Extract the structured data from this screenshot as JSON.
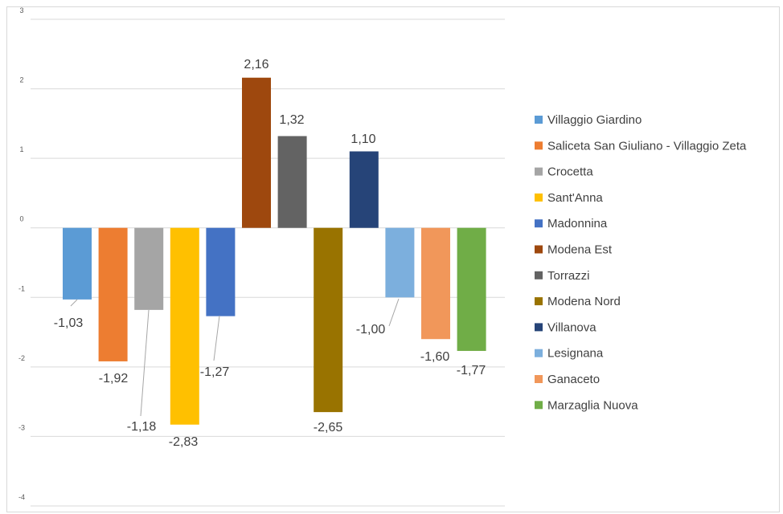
{
  "chart_data": {
    "type": "bar",
    "ylim": [
      -4,
      3
    ],
    "yticks": [
      "3",
      "2",
      "1",
      "0",
      "-1",
      "-2",
      "-3",
      "-4"
    ],
    "grid": true,
    "legend_position": "right",
    "series": [
      {
        "name": "Villaggio Giardino",
        "value": -1.03,
        "label": "-1,03",
        "color": "#5B9BD5"
      },
      {
        "name": "Saliceta San Giuliano - Villaggio Zeta",
        "value": -1.92,
        "label": "-1,92",
        "color": "#ED7D31"
      },
      {
        "name": "Crocetta",
        "value": -1.18,
        "label": "-1,18",
        "color": "#A5A5A5"
      },
      {
        "name": "Sant'Anna",
        "value": -2.83,
        "label": "-2,83",
        "color": "#FFC000"
      },
      {
        "name": "Madonnina",
        "value": -1.27,
        "label": "-1,27",
        "color": "#4472C4"
      },
      {
        "name": "Modena Est",
        "value": 2.16,
        "label": "2,16",
        "color": "#9E480E"
      },
      {
        "name": "Torrazzi",
        "value": 1.32,
        "label": "1,32",
        "color": "#636363"
      },
      {
        "name": "Modena Nord",
        "value": -2.65,
        "label": "-2,65",
        "color": "#997300"
      },
      {
        "name": "Villanova",
        "value": 1.1,
        "label": "1,10",
        "color": "#264478"
      },
      {
        "name": "Lesignana",
        "value": -1.0,
        "label": "-1,00",
        "color": "#7CAFDD"
      },
      {
        "name": "Ganaceto",
        "value": -1.6,
        "label": "-1,60",
        "color": "#F1975A"
      },
      {
        "name": "Marzaglia Nuova",
        "value": -1.77,
        "label": "-1,77",
        "color": "#70AD47"
      }
    ]
  }
}
